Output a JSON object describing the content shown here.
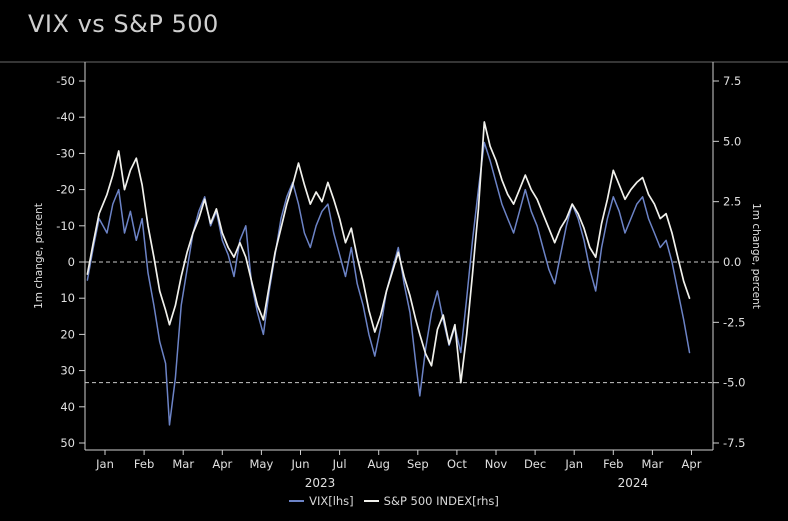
{
  "title": "VIX vs S&P 500",
  "colors": {
    "background": "#000000",
    "vix": "#6c83c6",
    "spx": "#f1f1ec",
    "axis": "#cfcfcf",
    "text": "#e0e0e0",
    "reference_dash": "#c8c8c8",
    "top_rule": "#6a6a6a"
  },
  "chart_data": {
    "type": "line",
    "title": "VIX vs S&P 500",
    "left_axis": {
      "label": "1m change, percent",
      "inverted": true,
      "range": [
        -50,
        50
      ],
      "tick_labels": [
        "-50",
        "-40",
        "-30",
        "-20",
        "-10",
        "0",
        "10",
        "20",
        "30",
        "40",
        "50"
      ]
    },
    "right_axis": {
      "label": "1m change, percent",
      "range": [
        -7.5,
        7.5
      ],
      "tick_labels": [
        "7.5",
        "5.0",
        "2.5",
        "0.0",
        "-2.5",
        "-5.0",
        "-7.5"
      ]
    },
    "x_axis": {
      "tick_labels": [
        "Jan",
        "Feb",
        "Mar",
        "Apr",
        "May",
        "Jun",
        "Jul",
        "Aug",
        "Sep",
        "Oct",
        "Nov",
        "Dec",
        "Jan",
        "Feb",
        "Mar",
        "Apr"
      ],
      "year_labels": [
        {
          "text": "2023",
          "tick_pos": 5.5
        },
        {
          "text": "2024",
          "tick_pos": 13.5
        }
      ]
    },
    "reference_lines_rhs": [
      0.0,
      -5.0
    ],
    "legend": {
      "position": "bottom",
      "entries": [
        "VIX[lhs]",
        "S&P 500 INDEX[rhs]"
      ]
    },
    "series": [
      {
        "name": "VIX[lhs]",
        "axis": "left",
        "color": "#6c83c6",
        "points": [
          [
            0.0,
            5
          ],
          [
            0.15,
            -4
          ],
          [
            0.3,
            -12
          ],
          [
            0.5,
            -8
          ],
          [
            0.65,
            -16
          ],
          [
            0.8,
            -20
          ],
          [
            0.95,
            -8
          ],
          [
            1.1,
            -14
          ],
          [
            1.25,
            -6
          ],
          [
            1.4,
            -12
          ],
          [
            1.55,
            3
          ],
          [
            1.7,
            12
          ],
          [
            1.85,
            22
          ],
          [
            2.0,
            28
          ],
          [
            2.1,
            45
          ],
          [
            2.25,
            32
          ],
          [
            2.4,
            12
          ],
          [
            2.55,
            2
          ],
          [
            2.7,
            -8
          ],
          [
            2.85,
            -14
          ],
          [
            3.0,
            -18
          ],
          [
            3.15,
            -10
          ],
          [
            3.3,
            -14
          ],
          [
            3.45,
            -6
          ],
          [
            3.6,
            -2
          ],
          [
            3.75,
            4
          ],
          [
            3.9,
            -6
          ],
          [
            4.05,
            -10
          ],
          [
            4.2,
            6
          ],
          [
            4.35,
            14
          ],
          [
            4.5,
            20
          ],
          [
            4.65,
            8
          ],
          [
            4.8,
            -2
          ],
          [
            4.95,
            -12
          ],
          [
            5.1,
            -18
          ],
          [
            5.25,
            -22
          ],
          [
            5.4,
            -16
          ],
          [
            5.55,
            -8
          ],
          [
            5.7,
            -4
          ],
          [
            5.85,
            -10
          ],
          [
            6.0,
            -14
          ],
          [
            6.15,
            -16
          ],
          [
            6.3,
            -8
          ],
          [
            6.45,
            -2
          ],
          [
            6.6,
            4
          ],
          [
            6.75,
            -4
          ],
          [
            6.9,
            6
          ],
          [
            7.05,
            12
          ],
          [
            7.2,
            20
          ],
          [
            7.35,
            26
          ],
          [
            7.5,
            18
          ],
          [
            7.65,
            8
          ],
          [
            7.8,
            2
          ],
          [
            7.95,
            -4
          ],
          [
            8.1,
            6
          ],
          [
            8.25,
            14
          ],
          [
            8.4,
            28
          ],
          [
            8.5,
            37
          ],
          [
            8.65,
            24
          ],
          [
            8.8,
            14
          ],
          [
            8.95,
            8
          ],
          [
            9.1,
            16
          ],
          [
            9.25,
            23
          ],
          [
            9.4,
            18
          ],
          [
            9.55,
            25
          ],
          [
            9.7,
            10
          ],
          [
            9.85,
            -6
          ],
          [
            10.0,
            -20
          ],
          [
            10.15,
            -33
          ],
          [
            10.3,
            -28
          ],
          [
            10.45,
            -22
          ],
          [
            10.6,
            -16
          ],
          [
            10.75,
            -12
          ],
          [
            10.9,
            -8
          ],
          [
            11.05,
            -14
          ],
          [
            11.2,
            -20
          ],
          [
            11.35,
            -14
          ],
          [
            11.5,
            -10
          ],
          [
            11.65,
            -4
          ],
          [
            11.8,
            2
          ],
          [
            11.95,
            6
          ],
          [
            12.1,
            -2
          ],
          [
            12.25,
            -10
          ],
          [
            12.4,
            -16
          ],
          [
            12.55,
            -12
          ],
          [
            12.7,
            -6
          ],
          [
            12.85,
            2
          ],
          [
            13.0,
            8
          ],
          [
            13.15,
            -4
          ],
          [
            13.3,
            -12
          ],
          [
            13.45,
            -18
          ],
          [
            13.6,
            -14
          ],
          [
            13.75,
            -8
          ],
          [
            13.9,
            -12
          ],
          [
            14.05,
            -16
          ],
          [
            14.2,
            -18
          ],
          [
            14.35,
            -12
          ],
          [
            14.5,
            -8
          ],
          [
            14.65,
            -4
          ],
          [
            14.8,
            -6
          ],
          [
            14.95,
            0
          ],
          [
            15.1,
            8
          ],
          [
            15.25,
            16
          ],
          [
            15.4,
            25
          ]
        ]
      },
      {
        "name": "S&P 500 INDEX[rhs]",
        "axis": "right",
        "color": "#f1f1ec",
        "points": [
          [
            0.0,
            -0.5
          ],
          [
            0.15,
            0.8
          ],
          [
            0.3,
            2.0
          ],
          [
            0.5,
            2.8
          ],
          [
            0.65,
            3.6
          ],
          [
            0.8,
            4.6
          ],
          [
            0.95,
            3.0
          ],
          [
            1.1,
            3.8
          ],
          [
            1.25,
            4.3
          ],
          [
            1.4,
            3.2
          ],
          [
            1.55,
            1.5
          ],
          [
            1.7,
            0.2
          ],
          [
            1.85,
            -1.2
          ],
          [
            2.0,
            -2.0
          ],
          [
            2.1,
            -2.6
          ],
          [
            2.25,
            -1.8
          ],
          [
            2.4,
            -0.6
          ],
          [
            2.55,
            0.4
          ],
          [
            2.7,
            1.2
          ],
          [
            2.85,
            1.8
          ],
          [
            3.0,
            2.6
          ],
          [
            3.15,
            1.6
          ],
          [
            3.3,
            2.2
          ],
          [
            3.45,
            1.2
          ],
          [
            3.6,
            0.6
          ],
          [
            3.75,
            0.2
          ],
          [
            3.9,
            0.8
          ],
          [
            4.05,
            0.2
          ],
          [
            4.2,
            -0.8
          ],
          [
            4.35,
            -1.8
          ],
          [
            4.5,
            -2.4
          ],
          [
            4.65,
            -1.0
          ],
          [
            4.8,
            0.4
          ],
          [
            4.95,
            1.4
          ],
          [
            5.1,
            2.4
          ],
          [
            5.25,
            3.2
          ],
          [
            5.4,
            4.1
          ],
          [
            5.55,
            3.2
          ],
          [
            5.7,
            2.4
          ],
          [
            5.85,
            2.9
          ],
          [
            6.0,
            2.5
          ],
          [
            6.15,
            3.3
          ],
          [
            6.3,
            2.6
          ],
          [
            6.45,
            1.8
          ],
          [
            6.6,
            0.8
          ],
          [
            6.75,
            1.4
          ],
          [
            6.9,
            0.2
          ],
          [
            7.05,
            -0.8
          ],
          [
            7.2,
            -2.0
          ],
          [
            7.35,
            -2.9
          ],
          [
            7.5,
            -2.2
          ],
          [
            7.65,
            -1.2
          ],
          [
            7.8,
            -0.4
          ],
          [
            7.95,
            0.4
          ],
          [
            8.1,
            -0.6
          ],
          [
            8.25,
            -1.4
          ],
          [
            8.4,
            -2.4
          ],
          [
            8.5,
            -3.0
          ],
          [
            8.65,
            -3.8
          ],
          [
            8.8,
            -4.3
          ],
          [
            8.95,
            -2.8
          ],
          [
            9.1,
            -2.2
          ],
          [
            9.25,
            -3.4
          ],
          [
            9.4,
            -2.6
          ],
          [
            9.55,
            -5.0
          ],
          [
            9.7,
            -3.0
          ],
          [
            9.85,
            -0.5
          ],
          [
            10.0,
            2.2
          ],
          [
            10.15,
            5.8
          ],
          [
            10.3,
            4.8
          ],
          [
            10.45,
            4.2
          ],
          [
            10.6,
            3.4
          ],
          [
            10.75,
            2.8
          ],
          [
            10.9,
            2.4
          ],
          [
            11.05,
            3.0
          ],
          [
            11.2,
            3.6
          ],
          [
            11.35,
            3.0
          ],
          [
            11.5,
            2.6
          ],
          [
            11.65,
            2.0
          ],
          [
            11.8,
            1.4
          ],
          [
            11.95,
            0.8
          ],
          [
            12.1,
            1.4
          ],
          [
            12.25,
            1.8
          ],
          [
            12.4,
            2.4
          ],
          [
            12.55,
            2.0
          ],
          [
            12.7,
            1.4
          ],
          [
            12.85,
            0.6
          ],
          [
            13.0,
            0.2
          ],
          [
            13.15,
            1.6
          ],
          [
            13.3,
            2.6
          ],
          [
            13.45,
            3.8
          ],
          [
            13.6,
            3.2
          ],
          [
            13.75,
            2.6
          ],
          [
            13.9,
            3.0
          ],
          [
            14.05,
            3.3
          ],
          [
            14.2,
            3.5
          ],
          [
            14.35,
            2.8
          ],
          [
            14.5,
            2.4
          ],
          [
            14.65,
            1.8
          ],
          [
            14.8,
            2.0
          ],
          [
            14.95,
            1.2
          ],
          [
            15.1,
            0.2
          ],
          [
            15.25,
            -0.8
          ],
          [
            15.4,
            -1.5
          ]
        ]
      }
    ]
  }
}
